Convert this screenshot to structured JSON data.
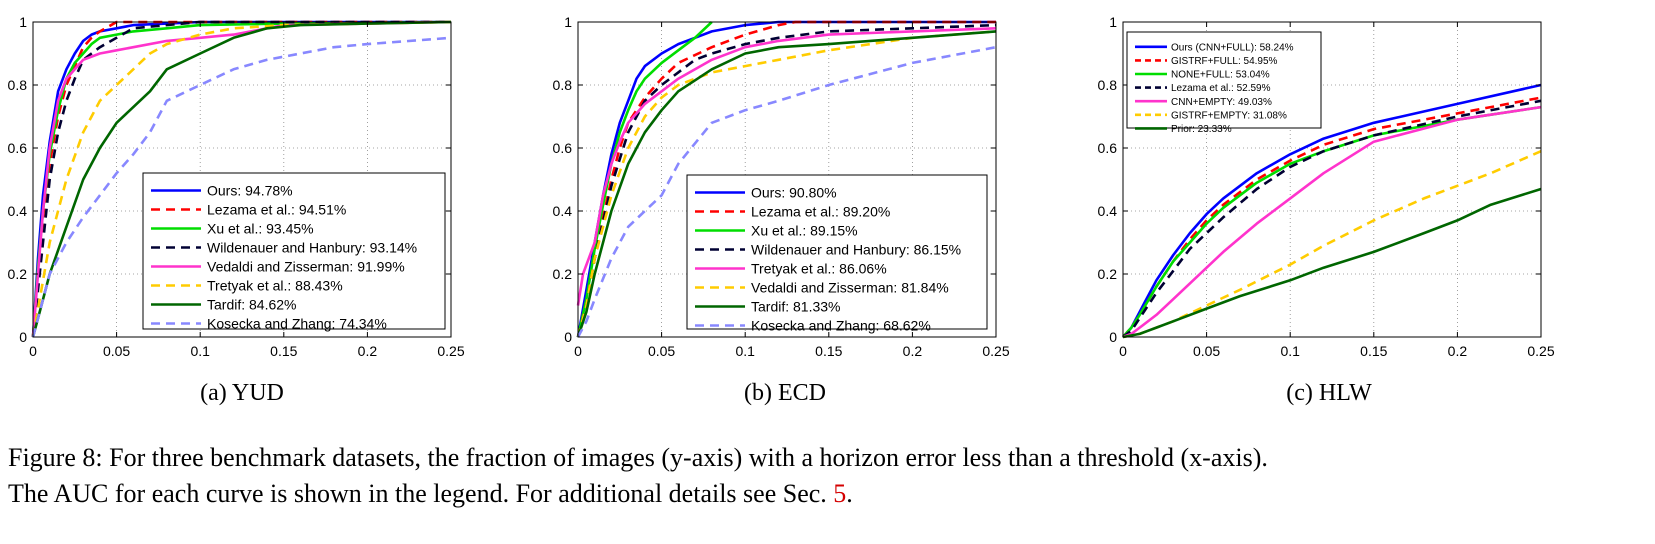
{
  "figure": {
    "caption_line1": "Figure 8: For three benchmark datasets, the fraction of images (y-axis) with a horizon error less than a threshold (x-axis).",
    "caption_line2_pre": "The AUC for each curve is shown in the legend. For additional details see Sec. ",
    "caption_ref": "5",
    "caption_line2_post": "."
  },
  "chart_data": [
    {
      "type": "line",
      "subcaption": "(a) YUD",
      "xlim": [
        0,
        0.25
      ],
      "ylim": [
        0,
        1
      ],
      "xticks": [
        0,
        0.05,
        0.1,
        0.15,
        0.2,
        0.25
      ],
      "xtick_labels": [
        "0",
        "0.05",
        "0.1",
        "0.15",
        "0.2",
        "0.25"
      ],
      "yticks": [
        0,
        0.2,
        0.4,
        0.6,
        0.8,
        1
      ],
      "ytick_labels": [
        "0",
        "0.2",
        "0.4",
        "0.6",
        "0.8",
        "1"
      ],
      "grid": true,
      "legend_position": "bottom-right",
      "series": [
        {
          "name": "Ours:  94.78%",
          "color": "#0000ff",
          "dash": "solid",
          "x": [
            0,
            0.003,
            0.006,
            0.01,
            0.015,
            0.02,
            0.025,
            0.03,
            0.035,
            0.04,
            0.05,
            0.06,
            0.08,
            0.1,
            0.25
          ],
          "y": [
            0,
            0.25,
            0.45,
            0.62,
            0.78,
            0.85,
            0.9,
            0.94,
            0.96,
            0.97,
            0.98,
            0.99,
            0.995,
            1,
            1
          ]
        },
        {
          "name": "Lezama et al.:  94.51%",
          "color": "#ff0000",
          "dash": "dashed",
          "x": [
            0,
            0.003,
            0.006,
            0.01,
            0.015,
            0.02,
            0.025,
            0.03,
            0.035,
            0.04,
            0.05,
            0.25
          ],
          "y": [
            0,
            0.2,
            0.38,
            0.55,
            0.7,
            0.8,
            0.86,
            0.92,
            0.95,
            0.97,
            1,
            1
          ]
        },
        {
          "name": "Xu et al.:  93.45%",
          "color": "#00dd00",
          "dash": "solid",
          "x": [
            0,
            0.003,
            0.006,
            0.01,
            0.015,
            0.02,
            0.025,
            0.03,
            0.035,
            0.04,
            0.05,
            0.06,
            0.08,
            0.1,
            0.15,
            0.25
          ],
          "y": [
            0,
            0.22,
            0.4,
            0.58,
            0.72,
            0.82,
            0.87,
            0.9,
            0.93,
            0.95,
            0.96,
            0.97,
            0.98,
            0.99,
            0.995,
            1
          ]
        },
        {
          "name": "Wildenauer and Hanbury:  93.14%",
          "color": "#000033",
          "dash": "dashed",
          "x": [
            0,
            0.003,
            0.006,
            0.01,
            0.015,
            0.02,
            0.025,
            0.03,
            0.04,
            0.05,
            0.06,
            0.08,
            0.1,
            0.15,
            0.25
          ],
          "y": [
            0,
            0.15,
            0.3,
            0.5,
            0.65,
            0.75,
            0.82,
            0.88,
            0.92,
            0.95,
            0.98,
            0.99,
            1,
            1,
            1
          ]
        },
        {
          "name": "Vedaldi and Zisserman:  91.99%",
          "color": "#ff33cc",
          "dash": "solid",
          "x": [
            0,
            0.003,
            0.006,
            0.01,
            0.015,
            0.02,
            0.03,
            0.04,
            0.05,
            0.06,
            0.08,
            0.1,
            0.12,
            0.14,
            0.15,
            0.2,
            0.25
          ],
          "y": [
            0,
            0.2,
            0.4,
            0.6,
            0.75,
            0.82,
            0.88,
            0.9,
            0.91,
            0.92,
            0.94,
            0.95,
            0.96,
            0.98,
            0.99,
            0.995,
            1
          ]
        },
        {
          "name": "Tretyak et al.:  88.43%",
          "color": "#ffcc00",
          "dash": "dashed",
          "x": [
            0,
            0.005,
            0.01,
            0.02,
            0.03,
            0.04,
            0.05,
            0.06,
            0.07,
            0.08,
            0.1,
            0.12,
            0.15,
            0.25
          ],
          "y": [
            0,
            0.15,
            0.3,
            0.5,
            0.65,
            0.75,
            0.8,
            0.85,
            0.9,
            0.93,
            0.96,
            0.98,
            0.99,
            1
          ]
        },
        {
          "name": "Tardif:  84.62%",
          "color": "#006600",
          "dash": "solid",
          "x": [
            0,
            0.005,
            0.01,
            0.02,
            0.03,
            0.04,
            0.05,
            0.06,
            0.07,
            0.08,
            0.1,
            0.12,
            0.14,
            0.16,
            0.2,
            0.25
          ],
          "y": [
            0,
            0.1,
            0.2,
            0.35,
            0.5,
            0.6,
            0.68,
            0.73,
            0.78,
            0.85,
            0.9,
            0.95,
            0.98,
            0.99,
            0.995,
            1
          ]
        },
        {
          "name": "Kosecka and Zhang:  74.34%",
          "color": "#8888ff",
          "dash": "dashed",
          "x": [
            0,
            0.005,
            0.01,
            0.02,
            0.03,
            0.04,
            0.05,
            0.06,
            0.07,
            0.08,
            0.1,
            0.12,
            0.14,
            0.16,
            0.18,
            0.2,
            0.25
          ],
          "y": [
            0,
            0.1,
            0.2,
            0.3,
            0.38,
            0.45,
            0.52,
            0.58,
            0.65,
            0.75,
            0.8,
            0.85,
            0.88,
            0.9,
            0.92,
            0.93,
            0.95
          ]
        }
      ]
    },
    {
      "type": "line",
      "subcaption": "(b) ECD",
      "xlim": [
        0,
        0.25
      ],
      "ylim": [
        0,
        1
      ],
      "xticks": [
        0,
        0.05,
        0.1,
        0.15,
        0.2,
        0.25
      ],
      "xtick_labels": [
        "0",
        "0.05",
        "0.1",
        "0.15",
        "0.2",
        "0.25"
      ],
      "yticks": [
        0,
        0.2,
        0.4,
        0.6,
        0.8,
        1
      ],
      "ytick_labels": [
        "0",
        "0.2",
        "0.4",
        "0.6",
        "0.8",
        "1"
      ],
      "grid": true,
      "legend_position": "bottom-right",
      "series": [
        {
          "name": "Ours:  90.80%",
          "color": "#0000ff",
          "dash": "solid",
          "x": [
            0,
            0.005,
            0.01,
            0.015,
            0.02,
            0.025,
            0.03,
            0.035,
            0.04,
            0.05,
            0.06,
            0.07,
            0.08,
            0.1,
            0.12,
            0.25
          ],
          "y": [
            0,
            0.15,
            0.3,
            0.45,
            0.58,
            0.68,
            0.75,
            0.82,
            0.86,
            0.9,
            0.93,
            0.95,
            0.97,
            0.99,
            1,
            1
          ]
        },
        {
          "name": "Lezama et al.:  89.20%",
          "color": "#ff0000",
          "dash": "dashed",
          "x": [
            0,
            0.005,
            0.01,
            0.015,
            0.02,
            0.025,
            0.03,
            0.04,
            0.05,
            0.06,
            0.08,
            0.1,
            0.12,
            0.13,
            0.25
          ],
          "y": [
            0,
            0.12,
            0.25,
            0.38,
            0.5,
            0.6,
            0.68,
            0.76,
            0.82,
            0.87,
            0.92,
            0.96,
            0.99,
            1,
            1
          ]
        },
        {
          "name": "Xu et al.:  89.15%",
          "color": "#00dd00",
          "dash": "solid",
          "x": [
            0,
            0.005,
            0.01,
            0.015,
            0.02,
            0.025,
            0.03,
            0.035,
            0.04,
            0.05,
            0.06,
            0.07,
            0.08
          ],
          "y": [
            0,
            0.12,
            0.28,
            0.42,
            0.55,
            0.65,
            0.72,
            0.78,
            0.82,
            0.87,
            0.91,
            0.95,
            1
          ]
        },
        {
          "name": "Wildenauer and Hanbury:  86.15%",
          "color": "#000033",
          "dash": "dashed",
          "x": [
            0,
            0.005,
            0.01,
            0.02,
            0.03,
            0.04,
            0.05,
            0.06,
            0.07,
            0.08,
            0.1,
            0.12,
            0.15,
            0.2,
            0.25
          ],
          "y": [
            0,
            0.1,
            0.25,
            0.48,
            0.65,
            0.75,
            0.8,
            0.84,
            0.88,
            0.9,
            0.93,
            0.95,
            0.97,
            0.98,
            0.99
          ]
        },
        {
          "name": "Tretyak et al.:  86.06%",
          "color": "#ff33cc",
          "dash": "solid",
          "x": [
            0,
            0.003,
            0.01,
            0.015,
            0.02,
            0.025,
            0.03,
            0.04,
            0.05,
            0.06,
            0.08,
            0.1,
            0.12,
            0.15,
            0.2,
            0.25
          ],
          "y": [
            0.1,
            0.2,
            0.3,
            0.45,
            0.55,
            0.62,
            0.68,
            0.74,
            0.78,
            0.82,
            0.88,
            0.92,
            0.94,
            0.96,
            0.97,
            0.98
          ]
        },
        {
          "name": "Vedaldi and Zisserman:  81.84%",
          "color": "#ffcc00",
          "dash": "dashed",
          "x": [
            0,
            0.005,
            0.01,
            0.02,
            0.03,
            0.04,
            0.05,
            0.06,
            0.08,
            0.1,
            0.12,
            0.15,
            0.2,
            0.25
          ],
          "y": [
            0,
            0.1,
            0.25,
            0.45,
            0.6,
            0.7,
            0.76,
            0.8,
            0.84,
            0.86,
            0.88,
            0.91,
            0.95,
            0.97
          ]
        },
        {
          "name": "Tardif:  81.33%",
          "color": "#006600",
          "dash": "solid",
          "x": [
            0,
            0.005,
            0.01,
            0.02,
            0.03,
            0.04,
            0.05,
            0.06,
            0.08,
            0.1,
            0.12,
            0.15,
            0.2,
            0.25
          ],
          "y": [
            0,
            0.08,
            0.2,
            0.4,
            0.55,
            0.65,
            0.72,
            0.78,
            0.85,
            0.9,
            0.92,
            0.93,
            0.95,
            0.97
          ]
        },
        {
          "name": "Kosecka and Zhang:  68.62%",
          "color": "#8888ff",
          "dash": "dashed",
          "x": [
            0,
            0.005,
            0.01,
            0.02,
            0.03,
            0.04,
            0.05,
            0.06,
            0.08,
            0.1,
            0.12,
            0.15,
            0.2,
            0.25
          ],
          "y": [
            0,
            0.05,
            0.12,
            0.25,
            0.35,
            0.4,
            0.45,
            0.55,
            0.68,
            0.72,
            0.75,
            0.8,
            0.87,
            0.92
          ]
        }
      ]
    },
    {
      "type": "line",
      "subcaption": "(c) HLW",
      "xlim": [
        0,
        0.25
      ],
      "ylim": [
        0,
        1
      ],
      "xticks": [
        0,
        0.05,
        0.1,
        0.15,
        0.2,
        0.25
      ],
      "xtick_labels": [
        "0",
        "0.05",
        "0.1",
        "0.15",
        "0.2",
        "0.25"
      ],
      "yticks": [
        0,
        0.2,
        0.4,
        0.6,
        0.8,
        1
      ],
      "ytick_labels": [
        "0",
        "0.2",
        "0.4",
        "0.6",
        "0.8",
        "1"
      ],
      "grid": true,
      "legend_position": "top-left",
      "series": [
        {
          "name": "Ours (CNN+FULL):  58.24%",
          "color": "#0000ff",
          "dash": "solid",
          "x": [
            0,
            0.005,
            0.01,
            0.02,
            0.03,
            0.04,
            0.05,
            0.06,
            0.08,
            0.1,
            0.12,
            0.15,
            0.2,
            0.25
          ],
          "y": [
            0,
            0.03,
            0.08,
            0.18,
            0.26,
            0.33,
            0.39,
            0.44,
            0.52,
            0.58,
            0.63,
            0.68,
            0.74,
            0.8
          ]
        },
        {
          "name": "GISTRF+FULL:  54.95%",
          "color": "#ff0000",
          "dash": "dashed",
          "x": [
            0,
            0.005,
            0.01,
            0.02,
            0.03,
            0.04,
            0.05,
            0.06,
            0.08,
            0.1,
            0.12,
            0.15,
            0.2,
            0.25
          ],
          "y": [
            0,
            0.03,
            0.07,
            0.16,
            0.24,
            0.31,
            0.37,
            0.42,
            0.5,
            0.56,
            0.61,
            0.66,
            0.71,
            0.76
          ]
        },
        {
          "name": "NONE+FULL:  53.04%",
          "color": "#00dd00",
          "dash": "solid",
          "x": [
            0,
            0.005,
            0.01,
            0.02,
            0.03,
            0.04,
            0.05,
            0.06,
            0.08,
            0.1,
            0.12,
            0.15,
            0.2,
            0.25
          ],
          "y": [
            0,
            0.03,
            0.07,
            0.16,
            0.24,
            0.3,
            0.36,
            0.41,
            0.49,
            0.55,
            0.59,
            0.64,
            0.69,
            0.73
          ]
        },
        {
          "name": "Lezama et al.:  52.59%",
          "color": "#000033",
          "dash": "dashed",
          "x": [
            0,
            0.005,
            0.01,
            0.02,
            0.03,
            0.04,
            0.05,
            0.06,
            0.08,
            0.1,
            0.12,
            0.15,
            0.2,
            0.25
          ],
          "y": [
            0,
            0.02,
            0.06,
            0.14,
            0.21,
            0.28,
            0.33,
            0.38,
            0.47,
            0.54,
            0.59,
            0.64,
            0.7,
            0.75
          ]
        },
        {
          "name": "CNN+EMPTY:  49.03%",
          "color": "#ff33cc",
          "dash": "solid",
          "x": [
            0,
            0.005,
            0.01,
            0.02,
            0.03,
            0.04,
            0.05,
            0.06,
            0.08,
            0.1,
            0.12,
            0.15,
            0.2,
            0.25
          ],
          "y": [
            0,
            0.01,
            0.03,
            0.07,
            0.12,
            0.17,
            0.22,
            0.27,
            0.36,
            0.44,
            0.52,
            0.62,
            0.69,
            0.73
          ]
        },
        {
          "name": "GISTRF+EMPTY:  31.08%",
          "color": "#ffcc00",
          "dash": "dashed",
          "x": [
            0,
            0.01,
            0.02,
            0.03,
            0.05,
            0.07,
            0.1,
            0.12,
            0.15,
            0.18,
            0.2,
            0.22,
            0.25
          ],
          "y": [
            0,
            0.01,
            0.03,
            0.05,
            0.1,
            0.15,
            0.23,
            0.29,
            0.37,
            0.44,
            0.48,
            0.52,
            0.59
          ]
        },
        {
          "name": "Prior:  23.33%",
          "color": "#006600",
          "dash": "solid",
          "x": [
            0,
            0.01,
            0.02,
            0.03,
            0.05,
            0.07,
            0.1,
            0.12,
            0.15,
            0.18,
            0.2,
            0.22,
            0.25
          ],
          "y": [
            0,
            0.01,
            0.03,
            0.05,
            0.09,
            0.13,
            0.18,
            0.22,
            0.27,
            0.33,
            0.37,
            0.42,
            0.47
          ]
        }
      ]
    }
  ]
}
